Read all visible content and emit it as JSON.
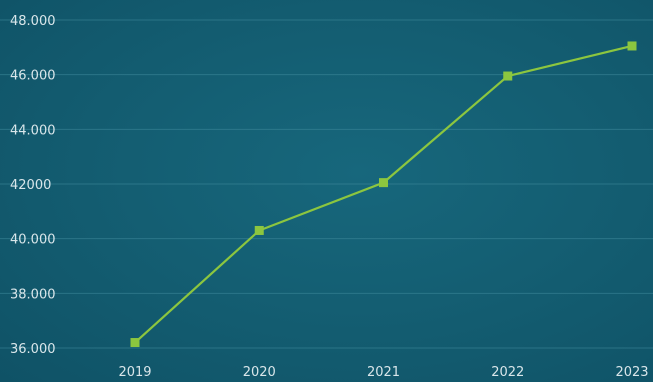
{
  "chart_data": {
    "type": "line",
    "title": "",
    "xlabel": "",
    "ylabel": "",
    "categories": [
      "2019",
      "2020",
      "2021",
      "2022",
      "2023"
    ],
    "series": [
      {
        "values": [
          36200,
          40300,
          42050,
          45950,
          47050
        ]
      }
    ],
    "ylim": [
      36000,
      48000
    ],
    "y_ticks": [
      {
        "value": 48000,
        "label": "48.000"
      },
      {
        "value": 46000,
        "label": "46.000"
      },
      {
        "value": 44000,
        "label": "44.000"
      },
      {
        "value": 42000,
        "label": "42000"
      },
      {
        "value": 40000,
        "label": "40.000"
      },
      {
        "value": 38000,
        "label": "38.000"
      },
      {
        "value": 36000,
        "label": "36.000"
      }
    ],
    "grid": true,
    "legend": "none",
    "colors": {
      "background": "#135c70",
      "grid": "#3f8a9c",
      "line": "#8cc63f",
      "marker": "#8cc63f",
      "text": "#d9e6ea"
    }
  }
}
